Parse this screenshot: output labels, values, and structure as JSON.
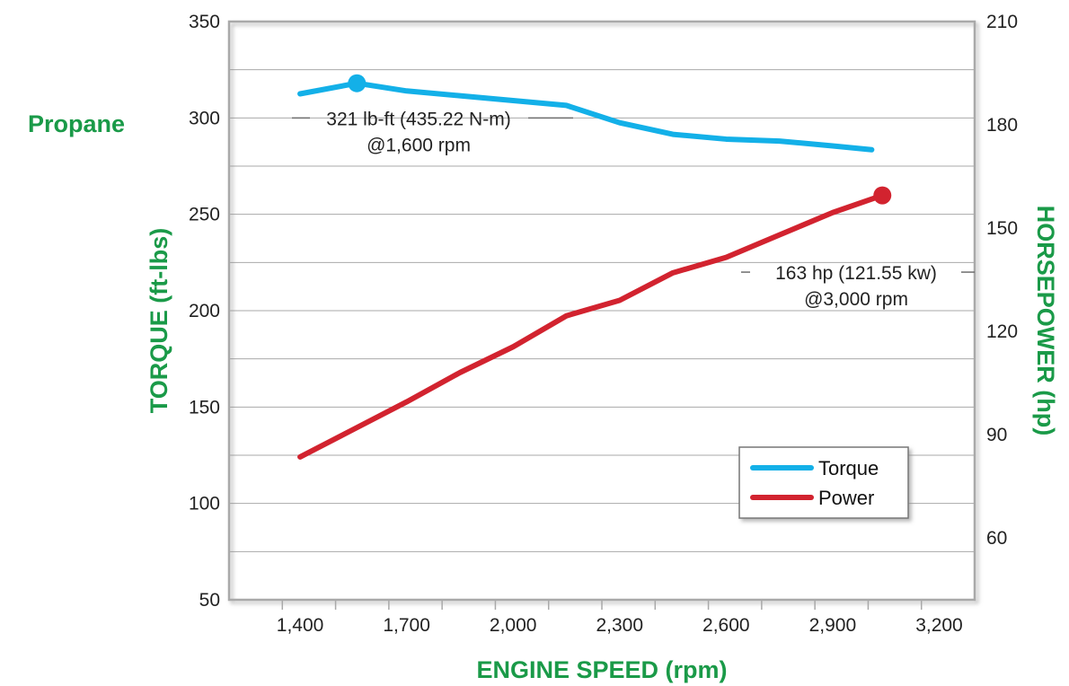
{
  "chart_data": {
    "type": "line",
    "title": "Propane",
    "xlabel": "ENGINE SPEED (rpm)",
    "ylabel": "TORQUE (ft-lbs)",
    "y2label": "HORSEPOWER (hp)",
    "xlim": [
      1200,
      3300
    ],
    "ylim": [
      50,
      350
    ],
    "y2lim": [
      42,
      210
    ],
    "x_ticks": [
      1400,
      1700,
      2000,
      2300,
      2600,
      2900,
      3200
    ],
    "x_tick_labels": [
      "1,400",
      "1,700",
      "2,000",
      "2,300",
      "2,600",
      "2,900",
      "3,200"
    ],
    "y_ticks": [
      50,
      100,
      150,
      200,
      250,
      300,
      350
    ],
    "y_tick_labels": [
      "50",
      "100",
      "150",
      "200",
      "250",
      "300",
      "350"
    ],
    "y2_ticks": [
      60,
      90,
      120,
      150,
      180,
      210
    ],
    "y2_tick_labels": [
      "60",
      "90",
      "120",
      "150",
      "180",
      "210"
    ],
    "grid": true,
    "legend_position": "bottom-right",
    "colors": {
      "title": "#1a9a48",
      "torque": "#13b0e8",
      "power": "#d2232f",
      "frame": "#a9a9a9",
      "grid": "#a9a9a9"
    },
    "series": [
      {
        "name": "Torque",
        "axis": "left",
        "x": [
          1400,
          1560,
          1700,
          1850,
          2000,
          2150,
          2300,
          2450,
          2600,
          2750,
          2900,
          3010
        ],
        "values": [
          312.5,
          318,
          314,
          311.5,
          309,
          306.5,
          297.5,
          291.5,
          289,
          288,
          285.5,
          283.5
        ]
      },
      {
        "name": "Power",
        "axis": "right",
        "x": [
          1400,
          1550,
          1700,
          1850,
          2000,
          2150,
          2300,
          2450,
          2600,
          2750,
          2900,
          3040
        ],
        "values": [
          83.5,
          91.5,
          99.5,
          108,
          115.5,
          124.5,
          129,
          137,
          141.5,
          148,
          154.5,
          159.5
        ]
      }
    ],
    "annotations": [
      {
        "series": "Torque",
        "x": 1560,
        "text_line1": "321 lb-ft (435.22 N-m)",
        "text_line2": "@1,600 rpm"
      },
      {
        "series": "Power",
        "x": 3040,
        "text_line1": "163 hp (121.55 kw)",
        "text_line2": "@3,000 rpm"
      }
    ]
  }
}
